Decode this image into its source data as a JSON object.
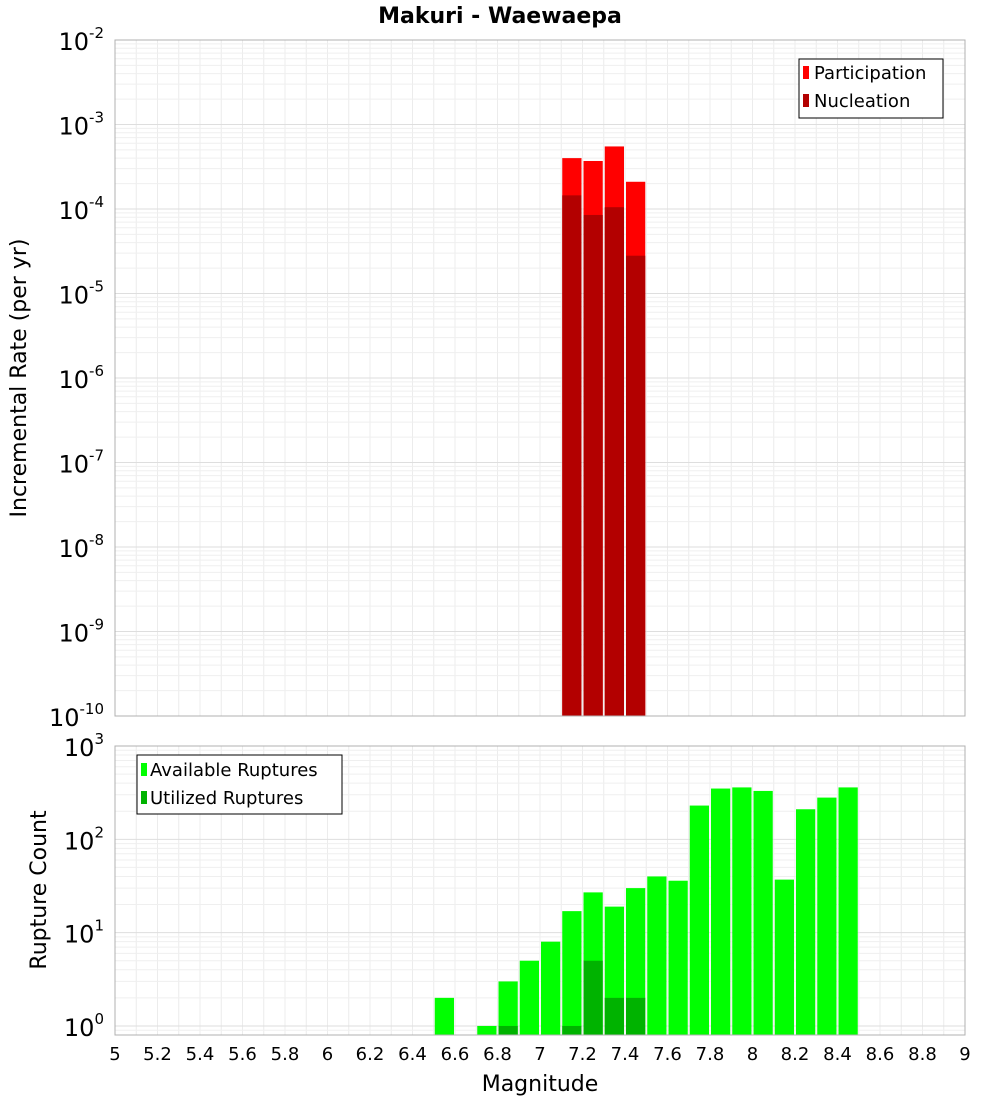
{
  "chart_data": [
    {
      "type": "bar",
      "title": "Makuri - Waewaepa",
      "ylabel": "Incremental Rate (per yr)",
      "yscale": "log",
      "ylim": [
        1e-10,
        0.01
      ],
      "yticks": [
        {
          "base": "10",
          "exp": "-2",
          "value": 0.01
        },
        {
          "base": "10",
          "exp": "-3",
          "value": 0.001
        },
        {
          "base": "10",
          "exp": "-4",
          "value": 0.0001
        },
        {
          "base": "10",
          "exp": "-5",
          "value": 1e-05
        },
        {
          "base": "10",
          "exp": "-6",
          "value": 1e-06
        },
        {
          "base": "10",
          "exp": "-7",
          "value": 1e-07
        },
        {
          "base": "10",
          "exp": "-8",
          "value": 1e-08
        },
        {
          "base": "10",
          "exp": "-9",
          "value": 1e-09
        },
        {
          "base": "10",
          "exp": "-10",
          "value": 1e-10
        }
      ],
      "xlim": [
        5,
        9
      ],
      "bin_width": 0.1,
      "grid": true,
      "legend_position": "top-right",
      "series": [
        {
          "name": "Participation",
          "color": "#ff0000",
          "x": [
            7.15,
            7.25,
            7.35,
            7.45
          ],
          "values": [
            0.0004,
            0.00037,
            0.00055,
            0.00021
          ]
        },
        {
          "name": "Nucleation",
          "color": "#b30000",
          "x": [
            7.15,
            7.25,
            7.35,
            7.45
          ],
          "values": [
            0.000145,
            8.5e-05,
            0.000105,
            2.8e-05
          ]
        }
      ]
    },
    {
      "type": "bar",
      "ylabel": "Rupture Count",
      "xlabel": "Magnitude",
      "yscale": "log",
      "ylim": [
        0.8,
        1000
      ],
      "yticks": [
        {
          "base": "10",
          "exp": "3",
          "value": 1000
        },
        {
          "base": "10",
          "exp": "2",
          "value": 100
        },
        {
          "base": "10",
          "exp": "1",
          "value": 10
        },
        {
          "base": "10",
          "exp": "0",
          "value": 1
        }
      ],
      "xlim": [
        5,
        9
      ],
      "xticks": [
        "5",
        "5.2",
        "5.4",
        "5.6",
        "5.8",
        "6",
        "6.2",
        "6.4",
        "6.6",
        "6.8",
        "7",
        "7.2",
        "7.4",
        "7.6",
        "7.8",
        "8",
        "8.2",
        "8.4",
        "8.6",
        "8.8",
        "9"
      ],
      "bin_width": 0.1,
      "grid": true,
      "legend_position": "top-left",
      "series": [
        {
          "name": "Available Ruptures",
          "color": "#00ff00",
          "x": [
            6.55,
            6.75,
            6.85,
            6.95,
            7.05,
            7.15,
            7.25,
            7.35,
            7.45,
            7.55,
            7.65,
            7.75,
            7.85,
            7.95,
            8.05,
            8.15,
            8.25,
            8.35,
            8.45
          ],
          "values": [
            2,
            1,
            3,
            5,
            8,
            17,
            27,
            19,
            30,
            40,
            36,
            230,
            350,
            360,
            330,
            37,
            210,
            280,
            360
          ]
        },
        {
          "name": "Utilized Ruptures",
          "color": "#00b300",
          "x": [
            6.85,
            7.15,
            7.25,
            7.35,
            7.45
          ],
          "values": [
            1,
            1,
            5,
            2,
            2
          ]
        }
      ]
    }
  ]
}
